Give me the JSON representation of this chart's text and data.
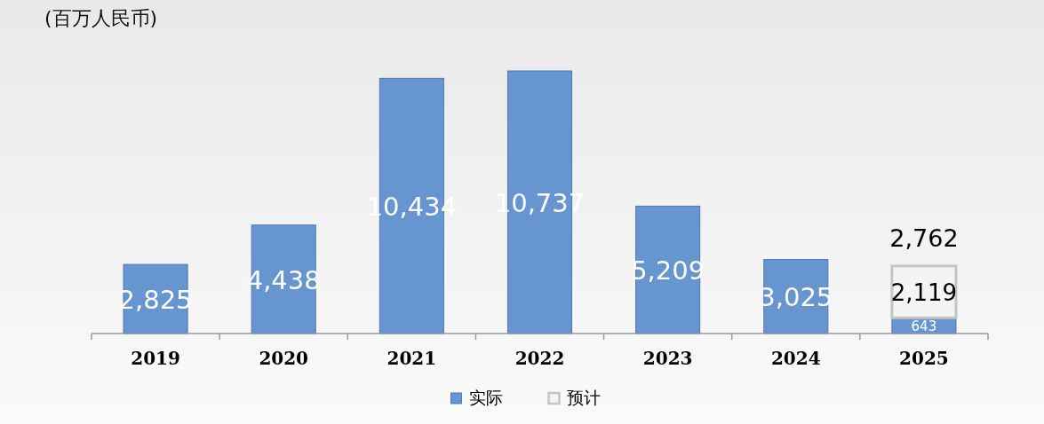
{
  "chart_data": {
    "type": "bar",
    "title": "(百万人民币)",
    "categories": [
      "2019",
      "2020",
      "2021",
      "2022",
      "2023",
      "2024",
      "2025"
    ],
    "stacked": true,
    "series": [
      {
        "name": "实际",
        "color": "#6795d0",
        "values": [
          2825,
          4438,
          10434,
          10737,
          5209,
          3025,
          643
        ],
        "value_labels": [
          "2,825",
          "4,438",
          "10,434",
          "10,737",
          "5,209",
          "3,025",
          "643"
        ]
      },
      {
        "name": "预计",
        "color": "#f4f4f4",
        "values": [
          null,
          null,
          null,
          null,
          null,
          null,
          2119
        ],
        "value_labels": [
          null,
          null,
          null,
          null,
          null,
          null,
          "2,119"
        ]
      }
    ],
    "totals": [
      null,
      null,
      null,
      null,
      null,
      null,
      "2,762"
    ],
    "legend": "bottom"
  }
}
